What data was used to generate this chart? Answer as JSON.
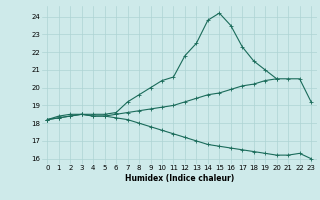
{
  "xlabel": "Humidex (Indice chaleur)",
  "ylabel": "",
  "background_color": "#ceeaea",
  "grid_color": "#aed4d4",
  "line_color": "#1a6b5a",
  "xlim": [
    -0.5,
    23.5
  ],
  "ylim": [
    15.7,
    24.6
  ],
  "xticks": [
    0,
    1,
    2,
    3,
    4,
    5,
    6,
    7,
    8,
    9,
    10,
    11,
    12,
    13,
    14,
    15,
    16,
    17,
    18,
    19,
    20,
    21,
    22,
    23
  ],
  "yticks": [
    16,
    17,
    18,
    19,
    20,
    21,
    22,
    23,
    24
  ],
  "line1_x": [
    0,
    1,
    2,
    3,
    4,
    5,
    6,
    7,
    8,
    9,
    10,
    11,
    12,
    13,
    14,
    15,
    16,
    17,
    18,
    19,
    20
  ],
  "line1_y": [
    18.2,
    18.4,
    18.5,
    18.5,
    18.5,
    18.5,
    18.6,
    19.2,
    19.6,
    20.0,
    20.4,
    20.6,
    21.8,
    22.5,
    23.8,
    24.2,
    23.5,
    22.3,
    21.5,
    21.0,
    20.5
  ],
  "line2_x": [
    0,
    1,
    2,
    3,
    4,
    5,
    6,
    7,
    8,
    9,
    10,
    11,
    12,
    13,
    14,
    15,
    16,
    17,
    18,
    19,
    20,
    21,
    22,
    23
  ],
  "line2_y": [
    18.2,
    18.3,
    18.4,
    18.5,
    18.4,
    18.4,
    18.5,
    18.6,
    18.7,
    18.8,
    18.9,
    19.0,
    19.2,
    19.4,
    19.6,
    19.7,
    19.9,
    20.1,
    20.2,
    20.4,
    20.5,
    20.5,
    20.5,
    19.2
  ],
  "line3_x": [
    0,
    1,
    2,
    3,
    4,
    5,
    6,
    7,
    8,
    9,
    10,
    11,
    12,
    13,
    14,
    15,
    16,
    17,
    18,
    19,
    20,
    21,
    22,
    23
  ],
  "line3_y": [
    18.2,
    18.3,
    18.4,
    18.5,
    18.4,
    18.4,
    18.3,
    18.2,
    18.0,
    17.8,
    17.6,
    17.4,
    17.2,
    17.0,
    16.8,
    16.7,
    16.6,
    16.5,
    16.4,
    16.3,
    16.2,
    16.2,
    16.3,
    16.0
  ]
}
